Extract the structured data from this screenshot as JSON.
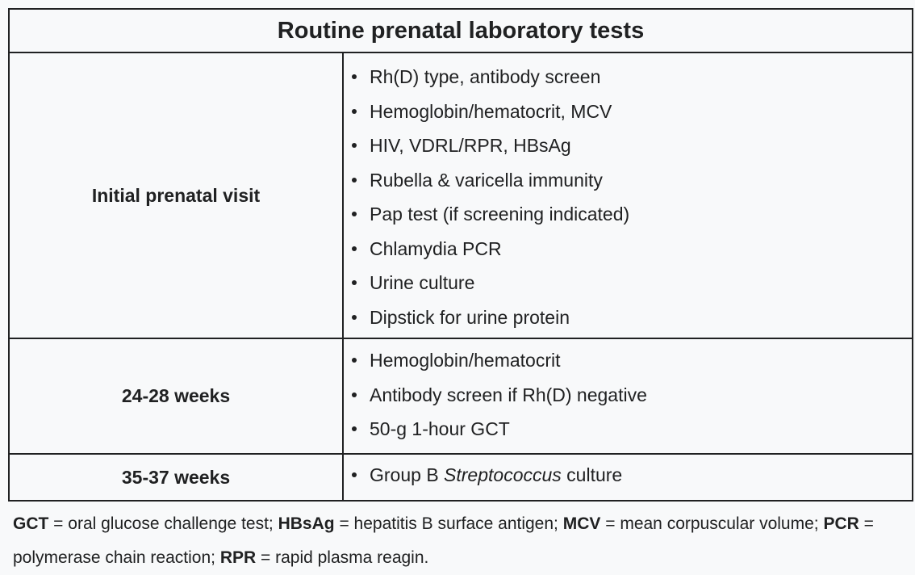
{
  "title": "Routine prenatal laboratory tests",
  "rows": [
    {
      "timing": "Initial prenatal visit",
      "tests": [
        "Rh(D) type, antibody screen",
        "Hemoglobin/hematocrit, MCV",
        "HIV, VDRL/RPR, HBsAg",
        "Rubella & varicella immunity",
        "Pap test (if screening indicated)",
        "Chlamydia PCR",
        "Urine culture",
        "Dipstick for urine protein"
      ]
    },
    {
      "timing": "24-28 weeks",
      "tests": [
        "Hemoglobin/hematocrit",
        "Antibody screen if Rh(D) negative",
        "50-g 1-hour GCT"
      ]
    },
    {
      "timing": "35-37 weeks",
      "tests": [
        {
          "before": "Group B ",
          "italic": "Streptococcus",
          "after": " culture"
        }
      ]
    }
  ],
  "footnote": [
    {
      "abbr": "GCT",
      "sep": " = ",
      "def": "oral glucose challenge test; "
    },
    {
      "abbr": "HBsAg",
      "sep": " = ",
      "def": "hepatitis B surface antigen; "
    },
    {
      "abbr": "MCV",
      "sep": " = ",
      "def": "mean corpuscular volume; "
    },
    {
      "abbr": "PCR",
      "sep": " = ",
      "def": "polymerase chain reaction; "
    },
    {
      "abbr": "RPR",
      "sep": " = ",
      "def": "rapid plasma reagin."
    }
  ]
}
